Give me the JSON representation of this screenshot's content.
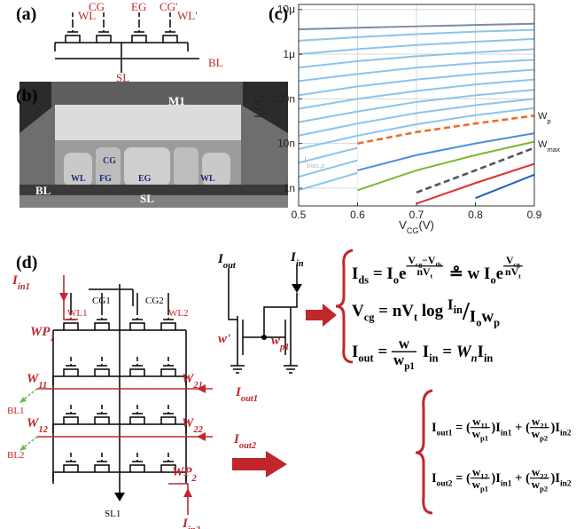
{
  "panel_a": {
    "tag": "(a)",
    "labels": [
      "WL",
      "CG",
      "EG",
      "CG'",
      "WL'",
      "SL",
      "BL"
    ]
  },
  "panel_b": {
    "tag": "(b)",
    "labels": [
      "M1",
      "CG",
      "WL",
      "FG",
      "EG",
      "WL",
      "BL",
      "SL"
    ]
  },
  "chart_data": {
    "type": "line",
    "tag": "(c)",
    "x_label": {
      "main": "V",
      "sub": "CG",
      "unit": "(V)"
    },
    "y_label": {
      "main": "I",
      "sub": "d",
      "unit": "(A)"
    },
    "x": [
      0.5,
      0.6,
      0.7,
      0.8,
      0.9
    ],
    "xlim": [
      0.5,
      0.9
    ],
    "xticks": [
      0.5,
      0.6,
      0.7,
      0.8,
      0.9
    ],
    "ylim": [
      4e-10,
      1.3e-05
    ],
    "yscale": "log",
    "yticks": [
      {
        "value": 1e-09,
        "label": "1n"
      },
      {
        "value": 1e-08,
        "label": "10n"
      },
      {
        "value": 1e-07,
        "label": "100n"
      },
      {
        "value": 1e-06,
        "label": "1μ"
      },
      {
        "value": 1e-05,
        "label": "10μ"
      }
    ],
    "grid": true,
    "series": [
      {
        "color": "#7a8aa8",
        "values": [
          3.6e-06,
          3.9e-06,
          4.2e-06,
          4.5e-06,
          4.8e-06
        ]
      },
      {
        "color": "#8cc4ea",
        "values": [
          2e-06,
          2.4e-06,
          2.8e-06,
          3.2e-06,
          3.5e-06
        ]
      },
      {
        "color": "#8cc4ea",
        "values": [
          1e-06,
          1.3e-06,
          1.6e-06,
          1.9e-06,
          2.2e-06
        ]
      },
      {
        "color": "#8cc4ea",
        "values": [
          5e-07,
          7e-07,
          9e-07,
          1.1e-06,
          1.3e-06
        ]
      },
      {
        "color": "#8cc4ea",
        "values": [
          2.5e-07,
          3.6e-07,
          5e-07,
          6.3e-07,
          7.5e-07
        ]
      },
      {
        "color": "#8cc4ea",
        "values": [
          1.2e-07,
          1.9e-07,
          2.7e-07,
          3.6e-07,
          4.5e-07
        ]
      },
      {
        "color": "#8cc4ea",
        "values": [
          6e-08,
          1e-07,
          1.5e-07,
          2.1e-07,
          2.7e-07
        ]
      },
      {
        "color": "#8cc4ea",
        "values": [
          3e-08,
          5.2e-08,
          8.5e-08,
          1.2e-07,
          1.6e-07
        ]
      },
      {
        "color": "#8cc4ea",
        "values": [
          1.5e-08,
          2.8e-08,
          4.8e-08,
          7.2e-08,
          1e-07
        ]
      },
      {
        "color": "#8cc4ea",
        "values": [
          7.5e-09,
          1.5e-08,
          2.7e-08,
          4.3e-08,
          6.2e-08
        ]
      },
      {
        "color": "#8cc4ea",
        "values": [
          3.7e-09,
          8e-09,
          1.5e-08,
          2.6e-08,
          3.9e-08
        ]
      },
      {
        "color": "#8cc4ea",
        "values": [
          1.8e-09,
          4.2e-09,
          8.5e-09,
          1.5e-08,
          2.4e-08
        ]
      },
      {
        "color": "#8cc4ea",
        "values": [
          9e-10,
          2.2e-09,
          4.8e-09,
          9e-09,
          1.5e-08
        ]
      },
      {
        "color": "#e8702a",
        "dash": true,
        "fill_below": "#ffffff",
        "values": [
          null,
          1e-08,
          1.8e-08,
          2.8e-08,
          4.2e-08
        ]
      },
      {
        "color": "#4a90d9",
        "values": [
          null,
          2.5e-09,
          5.5e-09,
          1e-08,
          1.7e-08
        ]
      },
      {
        "color": "#7ab82e",
        "values": [
          null,
          9e-10,
          2.5e-09,
          5.5e-09,
          1.1e-08
        ]
      },
      {
        "color": "#555555",
        "dash": true,
        "values": [
          null,
          null,
          8e-10,
          2.5e-09,
          8e-09
        ]
      },
      {
        "color": "#e03030",
        "values": [
          null,
          null,
          4.5e-10,
          1.3e-09,
          3.5e-09
        ]
      },
      {
        "color": "#2060c0",
        "values": [
          null,
          null,
          null,
          6e-10,
          2e-09
        ]
      }
    ],
    "annotations": [
      {
        "main": "W",
        "sub": "p"
      },
      {
        "main": "W",
        "sub": "max"
      },
      {
        "main": "I",
        "sub": "bias,p"
      }
    ]
  },
  "panel_d": {
    "tag": "(d)",
    "labels": [
      {
        "main": "I",
        "sub": "in1"
      },
      "WL1",
      "CG1",
      "CG2",
      "WL2",
      {
        "main": "WP",
        "sub": "1"
      },
      {
        "main": "W",
        "sub": "11"
      },
      {
        "main": "W",
        "sub": "21"
      },
      "BL1",
      {
        "main": "I",
        "sub": "out1"
      },
      {
        "main": "W",
        "sub": "12"
      },
      {
        "main": "W",
        "sub": "22"
      },
      "BL2",
      {
        "main": "I",
        "sub": "out2"
      },
      {
        "main": "WP",
        "sub": "2"
      },
      "SL1",
      {
        "main": "I",
        "sub": "in2"
      },
      {
        "main": "I",
        "sub": "out"
      },
      {
        "main": "I",
        "sub": "in"
      },
      "w'",
      {
        "main": "w",
        "sub": "p1"
      }
    ],
    "equations": [
      [
        "I",
        "ds",
        " = I",
        "o",
        "e",
        "V",
        "cg",
        "−V",
        "th",
        "nV",
        "t",
        " ≗ w I",
        "o",
        "e",
        "V",
        "cg",
        "nV",
        "t"
      ],
      [
        "V",
        "cg",
        " = nV",
        "t",
        " log ",
        "I",
        "in",
        "/",
        "I",
        "o",
        "w",
        "p"
      ],
      [
        "I",
        "out",
        " = ",
        "w",
        "w",
        "p1",
        " I",
        "in",
        " = ",
        "W",
        "n",
        "I",
        "in"
      ],
      [
        "I",
        "out1",
        " = (",
        "w",
        "11",
        "w",
        "p1",
        ")I",
        "in1",
        " + (",
        "w",
        "21",
        "w",
        "p2",
        ")I",
        "in2"
      ],
      [
        "I",
        "out2",
        " = (",
        "w",
        "12",
        "w",
        "p1",
        ")I",
        "in1",
        " + (",
        "w",
        "22",
        "w",
        "p2",
        ")I",
        "in2"
      ]
    ]
  }
}
